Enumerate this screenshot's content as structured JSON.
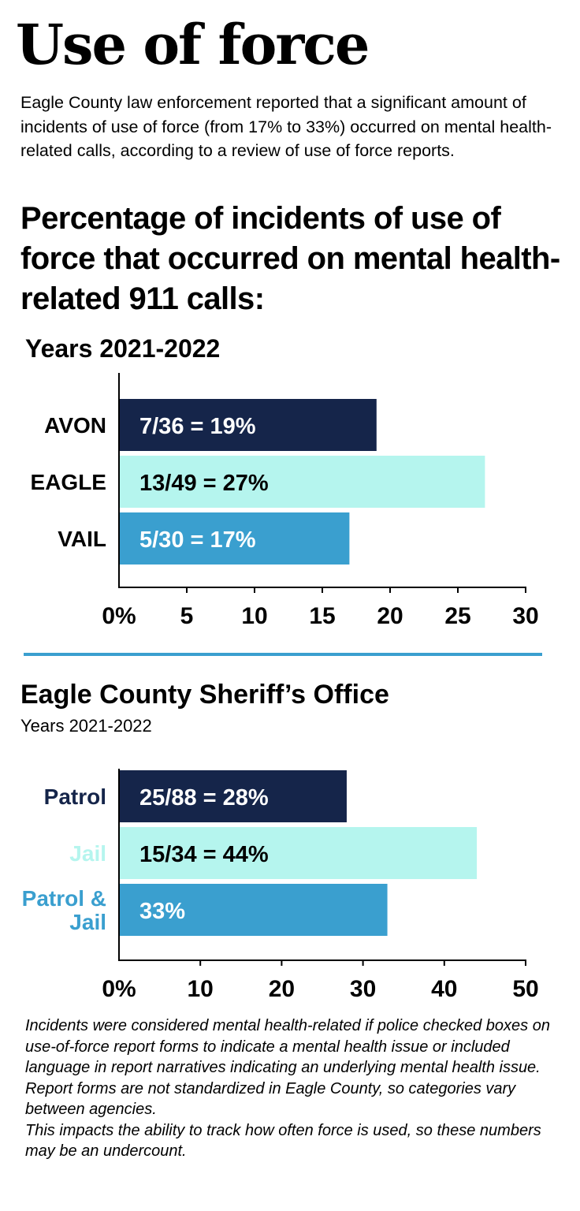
{
  "title": "Use of force",
  "intro": "Eagle County law enforcement reported that a significant amount of incidents of use of force (from 17% to 33%) occurred on mental health-related calls, according to a review of use of force reports.",
  "headline": "Percentage of incidents of use of force that occurred on mental health-related 911 calls:",
  "colors": {
    "dark_navy": "#15254a",
    "light_aqua": "#b5f5ee",
    "medium_blue": "#3a9fcf",
    "divider": "#3a9fcf",
    "text": "#000000"
  },
  "chart_data": [
    {
      "type": "bar",
      "orientation": "horizontal",
      "title": "Years 2021-2022",
      "subtitle": "",
      "categories": [
        "AVON",
        "EAGLE",
        "VAIL"
      ],
      "values": [
        19,
        27,
        17
      ],
      "bar_labels": [
        "7/36 = 19%",
        "13/49 = 27%",
        "5/30 = 17%"
      ],
      "bar_colors": [
        "#15254a",
        "#b5f5ee",
        "#3a9fcf"
      ],
      "label_colors": [
        "#ffffff",
        "#000000",
        "#ffffff"
      ],
      "category_label_colors": [
        "#000000",
        "#000000",
        "#000000"
      ],
      "xlim": [
        0,
        30
      ],
      "ticks": [
        0,
        5,
        10,
        15,
        20,
        25,
        30
      ],
      "tick_labels": [
        "0%",
        "5",
        "10",
        "15",
        "20",
        "25",
        "30"
      ],
      "grid": false
    },
    {
      "type": "bar",
      "orientation": "horizontal",
      "title": "Eagle County Sheriff’s Office",
      "subtitle": "Years 2021-2022",
      "categories": [
        "Patrol",
        "Jail",
        "Patrol & Jail"
      ],
      "category_lines": [
        [
          "Patrol"
        ],
        [
          "Jail"
        ],
        [
          "Patrol &",
          "Jail"
        ]
      ],
      "values": [
        28,
        44,
        33
      ],
      "bar_labels": [
        "25/88 = 28%",
        "15/34 = 44%",
        "33%"
      ],
      "bar_colors": [
        "#15254a",
        "#b5f5ee",
        "#3a9fcf"
      ],
      "label_colors": [
        "#ffffff",
        "#000000",
        "#ffffff"
      ],
      "category_label_colors": [
        "#15254a",
        "#b5f5ee",
        "#3a9fcf"
      ],
      "xlim": [
        0,
        50
      ],
      "ticks": [
        0,
        10,
        20,
        30,
        40,
        50
      ],
      "tick_labels": [
        "0%",
        "10",
        "20",
        "30",
        "40",
        "50"
      ],
      "grid": false
    }
  ],
  "footnote": {
    "line1": "Incidents were considered mental health-related if police checked boxes on use-of-force report forms to indicate a mental health issue or included language in report narratives indicating an underlying mental health issue. Report forms are not standardized in Eagle County, so categories vary between agencies.",
    "line2": "This impacts the ability to track how often force is used, so these numbers may be an undercount."
  }
}
